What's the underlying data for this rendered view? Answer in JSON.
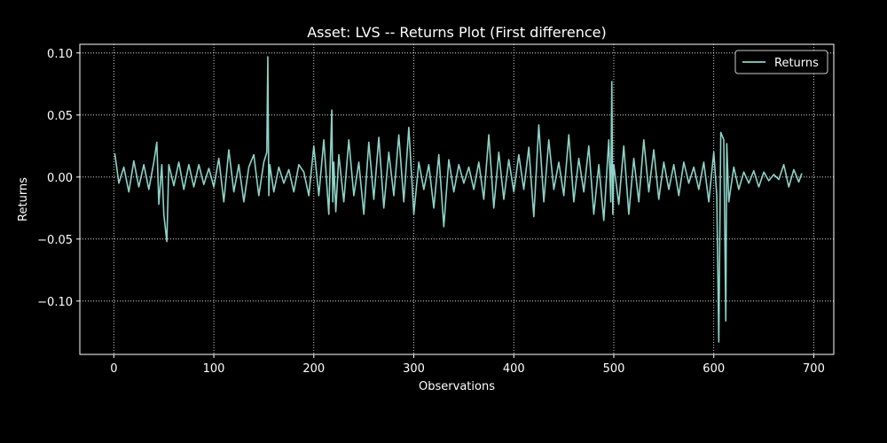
{
  "chart_data": {
    "type": "line",
    "title": "Asset: LVS -- Returns Plot (First difference)",
    "xlabel": "Observations",
    "ylabel": "Returns",
    "xlim": [
      -34,
      720
    ],
    "ylim": [
      -0.143,
      0.107
    ],
    "xticks": [
      0,
      100,
      200,
      300,
      400,
      500,
      600,
      700
    ],
    "xtick_labels": [
      "0",
      "100",
      "200",
      "300",
      "400",
      "500",
      "600",
      "700"
    ],
    "yticks": [
      0.1,
      0.05,
      0.0,
      -0.05,
      -0.1
    ],
    "ytick_labels": [
      "0.10",
      "0.05",
      "0.00",
      "−0.05",
      "−0.10"
    ],
    "grid": true,
    "legend_position": "top-right",
    "series": [
      {
        "name": "Returns",
        "color": "#8dd3c7",
        "x": [
          1,
          5,
          10,
          15,
          20,
          25,
          30,
          35,
          40,
          43,
          45,
          48,
          50,
          53,
          55,
          60,
          65,
          70,
          75,
          80,
          85,
          90,
          95,
          100,
          105,
          110,
          115,
          120,
          125,
          130,
          135,
          140,
          145,
          150,
          153,
          154,
          155,
          156,
          160,
          165,
          170,
          175,
          180,
          185,
          190,
          195,
          200,
          205,
          210,
          215,
          218,
          219,
          220,
          222,
          225,
          230,
          235,
          240,
          245,
          250,
          255,
          260,
          265,
          270,
          275,
          280,
          285,
          290,
          295,
          300,
          305,
          310,
          315,
          320,
          325,
          330,
          335,
          340,
          345,
          350,
          355,
          360,
          365,
          370,
          375,
          380,
          385,
          390,
          395,
          400,
          405,
          410,
          415,
          420,
          425,
          430,
          435,
          440,
          445,
          450,
          455,
          460,
          465,
          470,
          475,
          480,
          485,
          490,
          495,
          497,
          498,
          499,
          500,
          505,
          510,
          515,
          520,
          525,
          530,
          535,
          540,
          545,
          550,
          555,
          560,
          565,
          570,
          575,
          580,
          585,
          590,
          595,
          600,
          603,
          605,
          607,
          610,
          612,
          613,
          615,
          620,
          625,
          630,
          635,
          640,
          645,
          650,
          655,
          660,
          665,
          670,
          675,
          680,
          685,
          688
        ],
        "values": [
          0.019,
          -0.005,
          0.008,
          -0.012,
          0.013,
          -0.008,
          0.01,
          -0.01,
          0.012,
          0.028,
          -0.022,
          0.01,
          -0.03,
          -0.052,
          0.01,
          -0.007,
          0.012,
          -0.01,
          0.01,
          -0.008,
          0.01,
          -0.006,
          0.007,
          -0.008,
          0.015,
          -0.02,
          0.022,
          -0.012,
          0.01,
          -0.02,
          0.008,
          0.018,
          -0.015,
          0.012,
          0.02,
          0.097,
          -0.015,
          0.01,
          -0.012,
          0.008,
          -0.005,
          0.006,
          -0.012,
          0.01,
          0.004,
          -0.015,
          0.025,
          -0.015,
          0.03,
          -0.03,
          0.054,
          -0.02,
          0.012,
          -0.028,
          0.018,
          -0.02,
          0.03,
          -0.015,
          0.012,
          -0.03,
          0.028,
          -0.018,
          0.032,
          -0.025,
          0.02,
          -0.015,
          0.034,
          -0.02,
          0.04,
          -0.03,
          0.012,
          -0.01,
          0.01,
          -0.025,
          0.018,
          -0.04,
          0.014,
          -0.012,
          0.01,
          -0.005,
          0.008,
          -0.01,
          0.012,
          -0.018,
          0.034,
          -0.025,
          0.02,
          -0.018,
          0.014,
          -0.012,
          0.018,
          -0.01,
          0.024,
          -0.032,
          0.042,
          -0.02,
          0.03,
          -0.01,
          0.012,
          -0.015,
          0.034,
          -0.02,
          0.015,
          -0.012,
          0.025,
          -0.03,
          0.01,
          -0.035,
          0.03,
          -0.02,
          0.077,
          -0.03,
          0.01,
          -0.022,
          0.025,
          -0.03,
          0.015,
          -0.02,
          0.03,
          -0.012,
          0.022,
          -0.018,
          0.012,
          -0.01,
          0.01,
          -0.015,
          0.012,
          -0.005,
          0.008,
          -0.01,
          0.012,
          -0.02,
          0.02,
          -0.015,
          -0.133,
          0.036,
          0.03,
          -0.116,
          0.027,
          -0.02,
          0.008,
          -0.01,
          0.004,
          -0.005,
          0.005,
          -0.008,
          0.004,
          -0.003,
          0.002,
          -0.002,
          0.01,
          -0.008,
          0.006,
          -0.004,
          0.003
        ]
      }
    ]
  }
}
